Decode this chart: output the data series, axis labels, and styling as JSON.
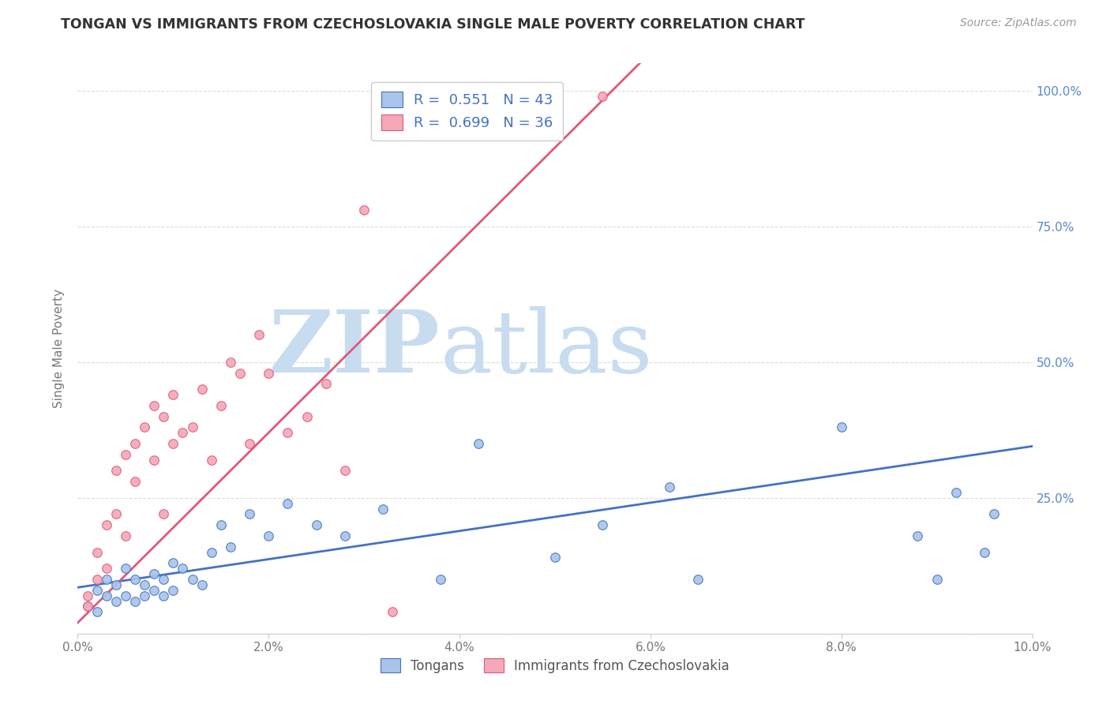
{
  "title": "TONGAN VS IMMIGRANTS FROM CZECHOSLOVAKIA SINGLE MALE POVERTY CORRELATION CHART",
  "source_text": "Source: ZipAtlas.com",
  "ylabel": "Single Male Poverty",
  "xlim": [
    0.0,
    0.1
  ],
  "ylim": [
    0.0,
    1.05
  ],
  "xtick_labels": [
    "0.0%",
    "2.0%",
    "4.0%",
    "6.0%",
    "8.0%",
    "10.0%"
  ],
  "xtick_vals": [
    0.0,
    0.02,
    0.04,
    0.06,
    0.08,
    0.1
  ],
  "ytick_vals": [
    0.0,
    0.25,
    0.5,
    0.75,
    1.0
  ],
  "ytick_labels_right": [
    "",
    "25.0%",
    "50.0%",
    "75.0%",
    "100.0%"
  ],
  "grid_color": "#dddddd",
  "bg_color": "#ffffff",
  "blue_color": "#A8C4E8",
  "pink_color": "#F4A8B8",
  "blue_line_color": "#4472C4",
  "pink_line_color": "#E05878",
  "watermark_zip_color": "#C8DCF0",
  "watermark_atlas_color": "#C8DCF0",
  "legend_label_blue": "Tongans",
  "legend_label_pink": "Immigrants from Czechoslovakia",
  "blue_x": [
    0.001,
    0.002,
    0.002,
    0.003,
    0.003,
    0.004,
    0.004,
    0.005,
    0.005,
    0.006,
    0.006,
    0.007,
    0.007,
    0.008,
    0.008,
    0.009,
    0.009,
    0.01,
    0.01,
    0.011,
    0.012,
    0.013,
    0.014,
    0.015,
    0.016,
    0.018,
    0.02,
    0.022,
    0.025,
    0.028,
    0.032,
    0.038,
    0.042,
    0.05,
    0.055,
    0.062,
    0.065,
    0.08,
    0.088,
    0.09,
    0.092,
    0.095,
    0.096
  ],
  "blue_y": [
    0.05,
    0.08,
    0.04,
    0.07,
    0.1,
    0.09,
    0.06,
    0.12,
    0.07,
    0.06,
    0.1,
    0.09,
    0.07,
    0.11,
    0.08,
    0.1,
    0.07,
    0.13,
    0.08,
    0.12,
    0.1,
    0.09,
    0.15,
    0.2,
    0.16,
    0.22,
    0.18,
    0.24,
    0.2,
    0.18,
    0.23,
    0.1,
    0.35,
    0.14,
    0.2,
    0.27,
    0.1,
    0.38,
    0.18,
    0.1,
    0.26,
    0.15,
    0.22
  ],
  "pink_x": [
    0.001,
    0.001,
    0.002,
    0.002,
    0.003,
    0.003,
    0.004,
    0.004,
    0.005,
    0.005,
    0.006,
    0.006,
    0.007,
    0.008,
    0.008,
    0.009,
    0.009,
    0.01,
    0.01,
    0.011,
    0.012,
    0.013,
    0.014,
    0.015,
    0.016,
    0.017,
    0.018,
    0.019,
    0.02,
    0.022,
    0.024,
    0.026,
    0.028,
    0.03,
    0.033,
    0.055
  ],
  "pink_y": [
    0.05,
    0.07,
    0.1,
    0.15,
    0.12,
    0.2,
    0.22,
    0.3,
    0.18,
    0.33,
    0.28,
    0.35,
    0.38,
    0.32,
    0.42,
    0.22,
    0.4,
    0.35,
    0.44,
    0.37,
    0.38,
    0.45,
    0.32,
    0.42,
    0.5,
    0.48,
    0.35,
    0.55,
    0.48,
    0.37,
    0.4,
    0.46,
    0.3,
    0.78,
    0.04,
    0.99
  ],
  "blue_slope": 2.6,
  "blue_intercept": 0.085,
  "pink_slope": 17.5,
  "pink_intercept": 0.02
}
